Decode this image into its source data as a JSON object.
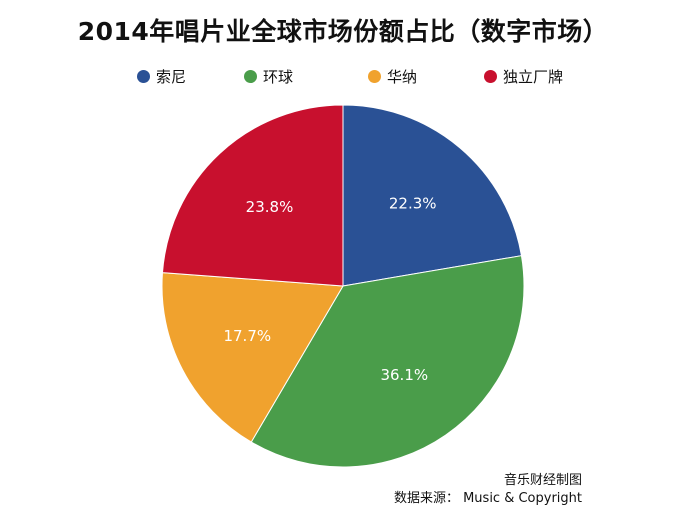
{
  "chart_data": {
    "type": "pie",
    "title": "2014年唱片业全球市场份额占比（数字市场）",
    "categories": [
      "索尼",
      "环球",
      "华纳",
      "独立厂牌"
    ],
    "values": [
      22.3,
      36.1,
      17.7,
      23.8
    ],
    "value_labels": [
      "22.3%",
      "36.1%",
      "17.7%",
      "23.8%"
    ],
    "colors": [
      "#2a5195",
      "#4a9d4a",
      "#f0a22e",
      "#c8102e"
    ],
    "legend_position": "top"
  },
  "footer": {
    "line1": "音乐财经制图",
    "line2": "数据来源： Music & Copyright"
  }
}
